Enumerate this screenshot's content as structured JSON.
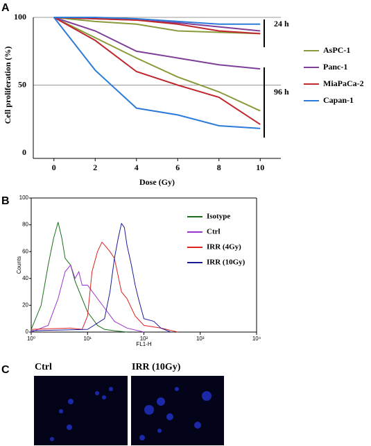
{
  "chart_data": [
    {
      "type": "line",
      "letter": "A",
      "xlabel": "Dose (Gy)",
      "ylabel": "Cell proliferation (%)",
      "x": [
        0,
        2,
        4,
        6,
        8,
        10
      ],
      "xlim": [
        -1,
        11
      ],
      "xticks": [
        0,
        2,
        4,
        6,
        8,
        10
      ],
      "ylim": [
        0,
        100
      ],
      "yticks": [
        0,
        50,
        100
      ],
      "annotations": [
        "24 h",
        "96 h"
      ],
      "series": [
        {
          "name": "AsPC-1",
          "color": "#8a9a3b",
          "values_24h": [
            100,
            97,
            95,
            90,
            89,
            88
          ],
          "values": [
            100,
            85,
            70,
            56,
            45,
            31
          ]
        },
        {
          "name": "Panc-1",
          "color": "#7e3f98",
          "values_24h": [
            100,
            99,
            98,
            96,
            93,
            90
          ],
          "values": [
            100,
            90,
            75,
            70,
            65,
            62
          ]
        },
        {
          "name": "MiaPaCa-2",
          "color": "#c0272d",
          "values_24h": [
            100,
            99,
            98,
            95,
            90,
            88
          ],
          "values": [
            100,
            83,
            60,
            50,
            41,
            21
          ]
        },
        {
          "name": "Capan-1",
          "color": "#2b7bd8",
          "values_24h": [
            100,
            100,
            99,
            97,
            95,
            95
          ],
          "values": [
            100,
            61,
            33,
            28,
            20,
            18
          ]
        }
      ]
    },
    {
      "type": "line",
      "letter": "B",
      "xlabel": "FL1-H",
      "ylabel": "Counts",
      "xlog": true,
      "xlim": [
        1,
        10000
      ],
      "xticks": [
        {
          "value": 1,
          "label": "10⁰"
        },
        {
          "value": 10,
          "label": "10¹"
        },
        {
          "value": 100,
          "label": "10²"
        },
        {
          "value": 1000,
          "label": "10³"
        },
        {
          "value": 10000,
          "label": "10⁴"
        }
      ],
      "ylim": [
        0,
        100
      ],
      "yticks": [
        0,
        20,
        40,
        60,
        80,
        100
      ],
      "series": [
        {
          "name": "Isotype",
          "color": "#1a6e1a",
          "x": [
            1,
            1.5,
            2,
            2.5,
            3,
            3.5,
            4,
            5,
            6,
            8,
            10,
            15,
            20,
            30,
            50
          ],
          "values": [
            2,
            20,
            50,
            70,
            82,
            70,
            55,
            50,
            38,
            25,
            15,
            5,
            2,
            1,
            0
          ]
        },
        {
          "name": "Ctrl",
          "color": "#9933cc",
          "x": [
            1,
            2,
            3,
            4,
            5,
            6,
            7,
            8,
            10,
            15,
            20,
            30,
            50,
            100
          ],
          "values": [
            0,
            5,
            25,
            45,
            50,
            40,
            45,
            35,
            35,
            25,
            18,
            8,
            3,
            0
          ]
        },
        {
          "name": "IRR (4Gy)",
          "color": "#dd2222",
          "x": [
            1,
            5,
            8,
            10,
            12,
            15,
            18,
            20,
            25,
            30,
            40,
            50,
            70,
            100,
            200,
            400
          ],
          "values": [
            2,
            3,
            2,
            12,
            45,
            60,
            67,
            65,
            60,
            55,
            30,
            25,
            12,
            5,
            3,
            0
          ]
        },
        {
          "name": "IRR (10Gy)",
          "color": "#1a1a99",
          "x": [
            1,
            10,
            20,
            25,
            30,
            35,
            40,
            45,
            50,
            60,
            70,
            80,
            100,
            150,
            200,
            300
          ],
          "values": [
            1,
            2,
            10,
            30,
            55,
            70,
            81,
            78,
            65,
            50,
            35,
            25,
            10,
            8,
            3,
            0
          ]
        }
      ]
    }
  ],
  "images": {
    "letter": "C",
    "labels": [
      "Ctrl",
      "IRR (10Gy)"
    ]
  }
}
